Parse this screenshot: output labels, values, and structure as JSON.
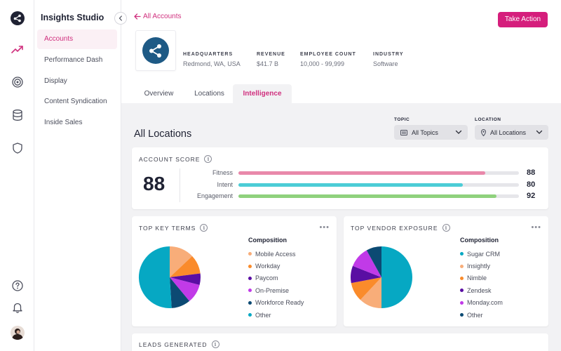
{
  "subnav": {
    "title": "Insights Studio",
    "items": [
      {
        "label": "Accounts"
      },
      {
        "label": "Performance Dash"
      },
      {
        "label": "Display"
      },
      {
        "label": "Content Syndication"
      },
      {
        "label": "Inside Sales"
      }
    ]
  },
  "header": {
    "back_label": "All Accounts",
    "action_label": "Take Action",
    "meta": [
      {
        "label": "HEADQUARTERS",
        "value": "Redmond, WA, USA"
      },
      {
        "label": "REVENUE",
        "value": "$41.7 B"
      },
      {
        "label": "EMPLOYEE COUNT",
        "value": "10,000 - 99,999"
      },
      {
        "label": "INDUSTRY",
        "value": "Software"
      }
    ],
    "tabs": [
      {
        "label": "Overview"
      },
      {
        "label": "Locations"
      },
      {
        "label": "Intelligence"
      }
    ]
  },
  "main": {
    "section_title": "All Locations",
    "filters": [
      {
        "label": "TOPIC",
        "value": "All Topics"
      },
      {
        "label": "LOCATION",
        "value": "All Locations"
      }
    ]
  },
  "score_card": {
    "title": "ACCOUNT SCORE",
    "score": "88",
    "bars": [
      {
        "label": "Fitness",
        "value": 88,
        "display": "88",
        "color": "#e988aa"
      },
      {
        "label": "Intent",
        "value": 80,
        "display": "80",
        "color": "#4ccdd6"
      },
      {
        "label": "Engagement",
        "value": 92,
        "display": "92",
        "color": "#8fd17d"
      }
    ]
  },
  "key_terms": {
    "title": "TOP KEY TERMS",
    "legend_title": "Composition",
    "items": [
      {
        "label": "Mobile Access",
        "color": "#f8ad79",
        "value": 13
      },
      {
        "label": "Workday",
        "color": "#fa8b2b",
        "value": 10
      },
      {
        "label": "Paycom",
        "color": "#5a0ea3",
        "value": 6
      },
      {
        "label": "On-Premise",
        "color": "#c13ae8",
        "value": 10
      },
      {
        "label": "Workforce Ready",
        "color": "#0c4a73",
        "value": 10
      },
      {
        "label": "Other",
        "color": "#06a8c3",
        "value": 51
      }
    ]
  },
  "vendor": {
    "title": "TOP VENDOR EXPOSURE",
    "legend_title": "Composition",
    "items": [
      {
        "label": "Sugar CRM",
        "color": "#06a8c3",
        "value": 50
      },
      {
        "label": "Insightly",
        "color": "#f8ad79",
        "value": 12
      },
      {
        "label": "Nimble",
        "color": "#fa8b2b",
        "value": 10
      },
      {
        "label": "Zendesk",
        "color": "#5a0ea3",
        "value": 9
      },
      {
        "label": "Monday.com",
        "color": "#c13ae8",
        "value": 11
      },
      {
        "label": "Other",
        "color": "#0c4a73",
        "value": 8
      }
    ]
  },
  "leads": {
    "title": "LEADS GENERATED"
  }
}
